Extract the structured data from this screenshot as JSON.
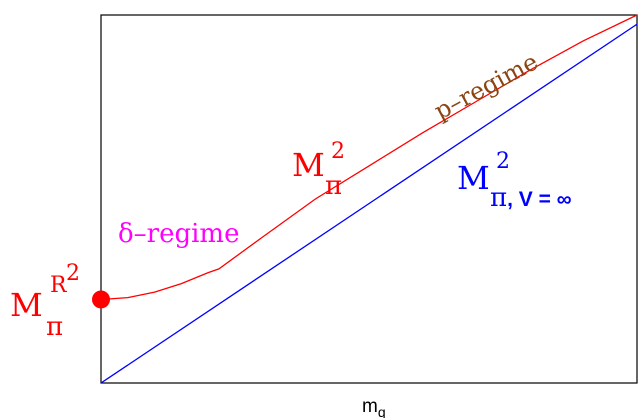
{
  "chart_data": {
    "type": "line",
    "title": "",
    "xlabel": "m",
    "xlabel_sub": "q",
    "ylabel": "",
    "xlim": [
      0,
      1
    ],
    "ylim": [
      0,
      1
    ],
    "grid": false,
    "legend": "none",
    "series": [
      {
        "color": "#ff0000",
        "x": [
          0.0,
          0.05,
          0.1,
          0.15,
          0.2,
          0.22,
          0.3,
          0.4,
          0.5,
          0.6,
          0.7,
          0.8,
          0.9,
          1.0
        ],
        "y": [
          0.227,
          0.232,
          0.247,
          0.27,
          0.3,
          0.31,
          0.395,
          0.5,
          0.59,
          0.68,
          0.765,
          0.85,
          0.93,
          1.0
        ]
      },
      {
        "color": "#0000ff",
        "x": [
          0.0,
          1.0
        ],
        "y": [
          0.0,
          0.975
        ]
      }
    ],
    "marker": {
      "x": 0.0,
      "y": 0.227,
      "color": "#ff0000"
    },
    "annotations": {
      "p_regime": {
        "text": "p–regime",
        "color": "#8b4513"
      },
      "delta_regime": {
        "text": "δ–regime",
        "color": "#ff00ff"
      },
      "m_pi_sq": {
        "base": "M",
        "sup": "2",
        "sub": "π",
        "color": "#ff0000"
      },
      "m_pi_inf": {
        "base": "M",
        "sup": "2",
        "sub_main": "π",
        "sub_rest": ", V = ∞",
        "color": "#0000ff"
      },
      "m_pi_r": {
        "base": "M",
        "sup": "R",
        "sup2": "2",
        "sub": "π",
        "color": "#ff0000"
      }
    }
  }
}
